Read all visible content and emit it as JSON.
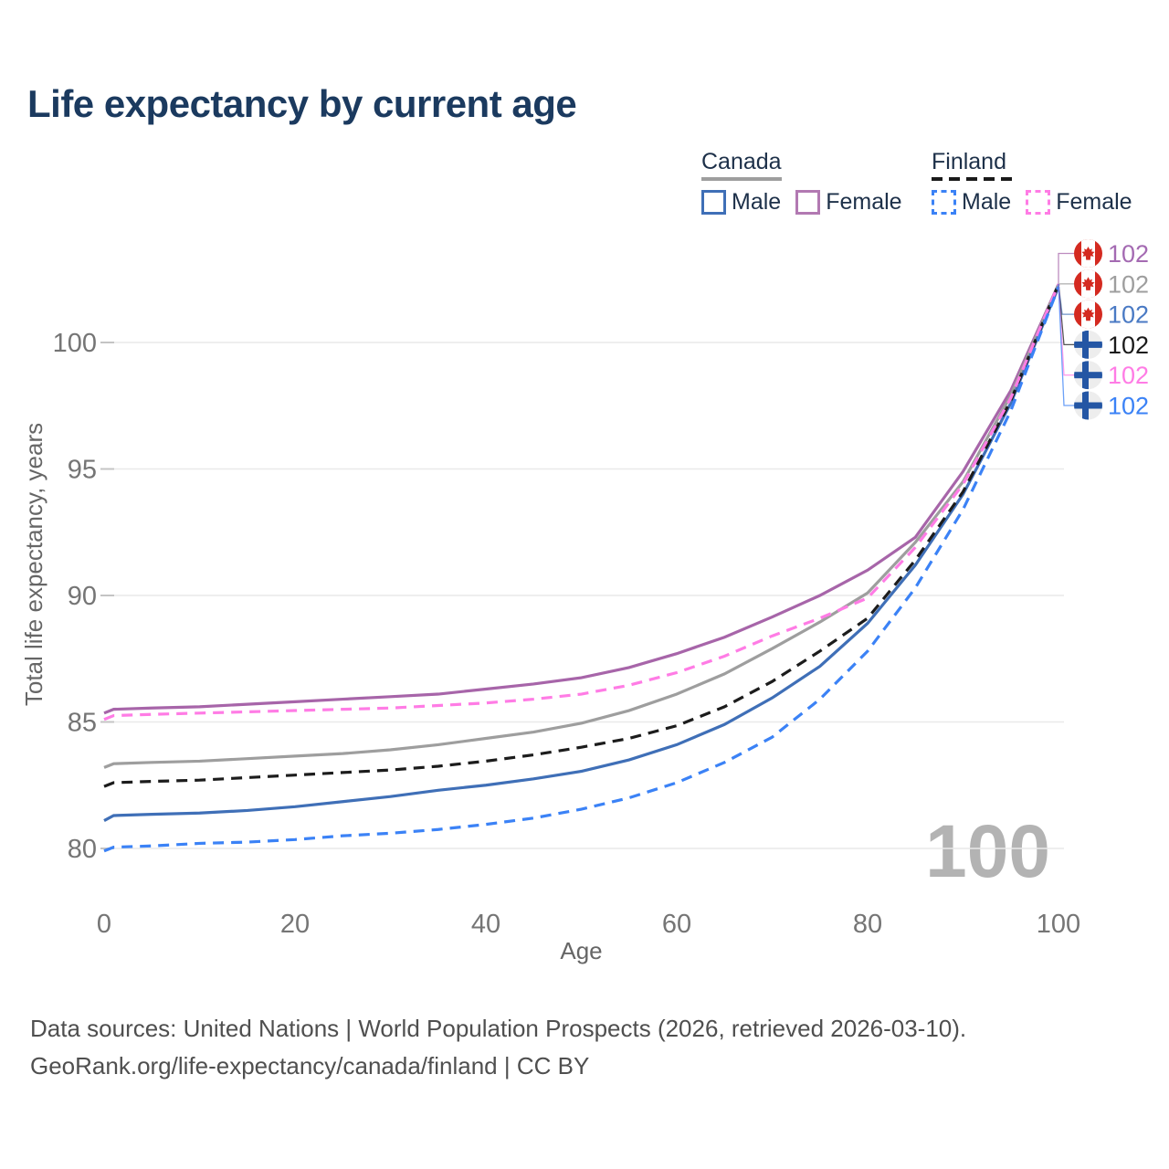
{
  "title": "Life expectancy by current age",
  "watermark": "100",
  "legend": {
    "groups": [
      {
        "name": "Canada",
        "line_style": "solid",
        "underline_color": "#9e9e9e",
        "items": [
          {
            "label": "Male",
            "color": "#3f6fb7",
            "dashed": false
          },
          {
            "label": "Female",
            "color": "#b279b2",
            "dashed": false
          }
        ]
      },
      {
        "name": "Finland",
        "line_style": "dashed",
        "underline_color": "#1a1a1a",
        "items": [
          {
            "label": "Male",
            "color": "#3b82f6",
            "dashed": true
          },
          {
            "label": "Female",
            "color": "#ff7ce5",
            "dashed": true
          }
        ]
      }
    ]
  },
  "chart_data": {
    "type": "line",
    "title": "Life expectancy by current age",
    "xlabel": "Age",
    "ylabel": "Total life expectancy, years",
    "x_ticks": [
      0,
      20,
      40,
      60,
      80,
      100
    ],
    "y_ticks": [
      80,
      85,
      90,
      95,
      100
    ],
    "xlim": [
      0,
      100
    ],
    "ylim": [
      79,
      103.5
    ],
    "grid": "horizontal",
    "legend_position": "top-right",
    "x": [
      0,
      1,
      5,
      10,
      15,
      20,
      25,
      30,
      35,
      40,
      45,
      50,
      55,
      60,
      65,
      70,
      75,
      80,
      85,
      90,
      95,
      100
    ],
    "series": [
      {
        "id": "canada-female",
        "name": "Canada Female",
        "country": "Canada",
        "sex": "Female",
        "color": "#a765a9",
        "dash": "",
        "flag": "canada",
        "end_label": "102",
        "label_color": "#a46ab2",
        "values": [
          85.35,
          85.5,
          85.55,
          85.6,
          85.7,
          85.8,
          85.9,
          86.0,
          86.1,
          86.3,
          86.5,
          86.75,
          87.15,
          87.7,
          88.35,
          89.15,
          90.0,
          91.0,
          92.3,
          94.9,
          98.1,
          102.3
        ]
      },
      {
        "id": "canada-total",
        "name": "Canada",
        "country": "Canada",
        "sex": "All",
        "color": "#9e9e9e",
        "dash": "",
        "flag": "canada",
        "end_label": "102",
        "label_color": "#9e9e9e",
        "values": [
          83.2,
          83.35,
          83.4,
          83.45,
          83.55,
          83.65,
          83.75,
          83.9,
          84.1,
          84.35,
          84.6,
          84.95,
          85.45,
          86.1,
          86.9,
          87.9,
          88.95,
          90.1,
          92.1,
          94.5,
          97.9,
          102.3
        ]
      },
      {
        "id": "canada-male",
        "name": "Canada Male",
        "country": "Canada",
        "sex": "Male",
        "color": "#3f6fb7",
        "dash": "",
        "flag": "canada",
        "end_label": "102",
        "label_color": "#4a7ac4",
        "values": [
          81.1,
          81.3,
          81.35,
          81.4,
          81.5,
          81.65,
          81.85,
          82.05,
          82.3,
          82.5,
          82.75,
          83.05,
          83.5,
          84.1,
          84.9,
          85.95,
          87.2,
          88.9,
          91.2,
          94.0,
          97.6,
          102.2
        ]
      },
      {
        "id": "finland-total",
        "name": "Finland",
        "country": "Finland",
        "sex": "All",
        "color": "#1c1c1c",
        "dash": "12 8",
        "flag": "finland",
        "end_label": "102",
        "label_color": "#1a1a1a",
        "values": [
          82.45,
          82.6,
          82.65,
          82.7,
          82.8,
          82.9,
          83.0,
          83.1,
          83.25,
          83.45,
          83.7,
          84.0,
          84.35,
          84.85,
          85.6,
          86.6,
          87.8,
          89.1,
          91.4,
          94.1,
          97.7,
          102.3
        ]
      },
      {
        "id": "finland-female",
        "name": "Finland Female",
        "country": "Finland",
        "sex": "Female",
        "color": "#ff7ce5",
        "dash": "12 8",
        "flag": "finland",
        "end_label": "102",
        "label_color": "#ff7ce5",
        "values": [
          85.1,
          85.25,
          85.3,
          85.35,
          85.4,
          85.45,
          85.5,
          85.55,
          85.65,
          85.75,
          85.9,
          86.1,
          86.45,
          86.95,
          87.6,
          88.4,
          89.1,
          89.9,
          91.9,
          94.4,
          97.8,
          102.3
        ]
      },
      {
        "id": "finland-male",
        "name": "Finland Male",
        "country": "Finland",
        "sex": "Male",
        "color": "#3b82f6",
        "dash": "12 8",
        "flag": "finland",
        "end_label": "102",
        "label_color": "#3b82f6",
        "values": [
          79.9,
          80.05,
          80.1,
          80.2,
          80.25,
          80.35,
          80.5,
          80.6,
          80.75,
          80.95,
          81.2,
          81.55,
          82.0,
          82.6,
          83.4,
          84.4,
          85.9,
          87.8,
          90.3,
          93.4,
          97.3,
          102.2
        ]
      }
    ]
  },
  "footer": {
    "line1": "Data sources: United Nations | World Population Prospects (2026, retrieved 2026-03-10).",
    "line2": "GeoRank.org/life-expectancy/canada/finland | CC BY"
  },
  "flag_colors": {
    "canada_red": "#d42a20",
    "finland_blue": "#2456a4",
    "finland_bg": "#ededed"
  }
}
